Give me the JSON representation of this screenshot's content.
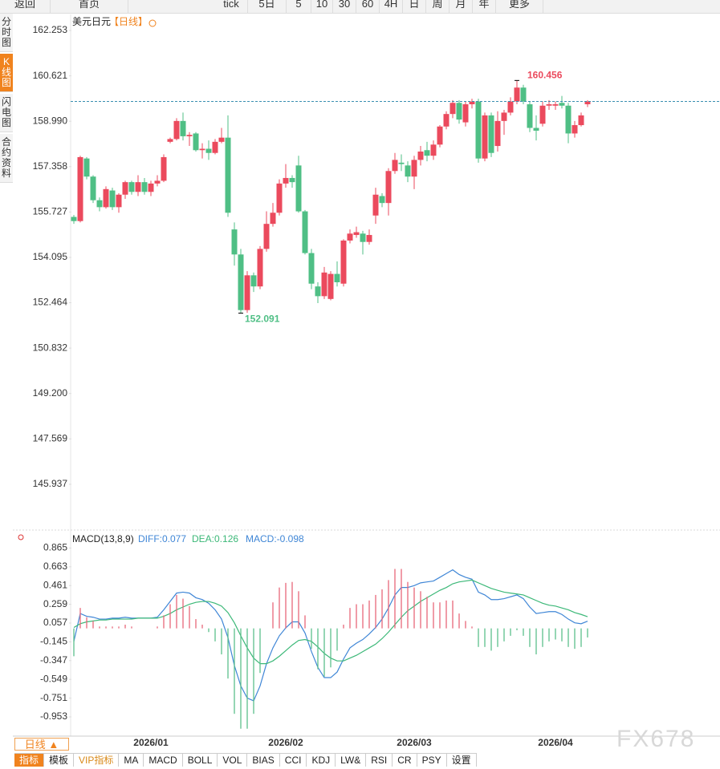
{
  "toolbar": {
    "items": [
      "返回",
      "首页",
      "tick",
      "5日",
      "5",
      "10",
      "30",
      "60",
      "4H",
      "日",
      "周",
      "月",
      "年",
      "更多"
    ]
  },
  "sidebar": [
    "分时图",
    "K线图",
    "闪电图",
    "合约资料"
  ],
  "chart_data": [
    {
      "type": "candlestick",
      "title": "美元日元",
      "subtitle": "【日线】",
      "up_color": "#eb4a5d",
      "down_color": "#4fbf85",
      "ylim": [
        144.32,
        162.83
      ],
      "yticks": [
        162.253,
        160.621,
        {
          "value": 158.99,
          "label": "158.990"
        },
        157.358,
        155.727,
        154.095,
        152.464,
        150.832,
        {
          "value": 149.2,
          "label": "149.200"
        },
        147.569,
        145.937
      ],
      "categories": [
        null,
        null,
        null,
        null,
        null,
        null,
        null,
        null,
        null,
        null,
        null,
        null,
        "2026/01",
        null,
        null,
        null,
        null,
        null,
        null,
        null,
        null,
        null,
        null,
        null,
        null,
        null,
        null,
        null,
        null,
        null,
        null,
        null,
        null,
        "2026/02",
        null,
        null,
        null,
        null,
        null,
        null,
        null,
        null,
        null,
        null,
        null,
        null,
        null,
        null,
        null,
        null,
        null,
        null,
        null,
        "2026/03",
        null,
        null,
        null,
        null,
        null,
        null,
        null,
        null,
        null,
        null,
        null,
        null,
        null,
        null,
        null,
        null,
        null,
        null,
        null,
        null,
        null,
        "2026/04",
        null,
        null,
        null,
        null,
        null
      ],
      "ohlc": [
        [
          155.55,
          155.62,
          155.3,
          155.4
        ],
        [
          155.4,
          157.75,
          155.35,
          157.7
        ],
        [
          157.65,
          157.7,
          156.9,
          157.0
        ],
        [
          157.0,
          157.05,
          156.05,
          156.15
        ],
        [
          156.15,
          156.25,
          155.75,
          155.9
        ],
        [
          155.9,
          156.65,
          155.85,
          156.55
        ],
        [
          156.5,
          156.6,
          155.8,
          155.9
        ],
        [
          155.9,
          156.4,
          155.7,
          156.35
        ],
        [
          156.35,
          156.85,
          156.2,
          156.8
        ],
        [
          156.8,
          156.85,
          156.35,
          156.45
        ],
        [
          156.45,
          157.05,
          156.3,
          156.8
        ],
        [
          156.8,
          156.95,
          156.35,
          156.45
        ],
        [
          156.45,
          156.85,
          156.3,
          156.75
        ],
        [
          156.75,
          157.05,
          156.65,
          156.85
        ],
        [
          156.85,
          157.8,
          156.8,
          157.7
        ],
        [
          158.25,
          158.4,
          158.2,
          158.35
        ],
        [
          158.35,
          159.1,
          158.3,
          159.0
        ],
        [
          159.0,
          159.3,
          158.3,
          158.45
        ],
        [
          158.45,
          158.6,
          158.1,
          158.5
        ],
        [
          158.55,
          158.6,
          157.9,
          157.95
        ],
        [
          157.95,
          158.2,
          157.65,
          158.0
        ],
        [
          158.0,
          158.3,
          157.6,
          157.85
        ],
        [
          157.85,
          158.35,
          157.8,
          158.25
        ],
        [
          158.25,
          158.75,
          158.2,
          158.4
        ],
        [
          158.4,
          159.2,
          155.55,
          155.7
        ],
        [
          155.1,
          155.35,
          153.8,
          154.2
        ],
        [
          154.2,
          154.4,
          152.091,
          152.2
        ],
        [
          152.2,
          153.6,
          152.1,
          153.45
        ],
        [
          153.45,
          153.55,
          152.85,
          153.05
        ],
        [
          153.05,
          154.5,
          152.95,
          154.4
        ],
        [
          154.4,
          155.75,
          154.3,
          155.3
        ],
        [
          155.3,
          156.05,
          155.2,
          155.7
        ],
        [
          155.7,
          156.9,
          155.6,
          156.75
        ],
        [
          156.75,
          157.45,
          156.6,
          156.95
        ],
        [
          156.95,
          157.05,
          156.6,
          156.8
        ],
        [
          157.4,
          157.75,
          155.7,
          155.75
        ],
        [
          155.75,
          155.8,
          154.2,
          154.25
        ],
        [
          154.25,
          154.4,
          152.95,
          153.15
        ],
        [
          153.05,
          153.2,
          152.45,
          152.7
        ],
        [
          152.7,
          153.75,
          152.6,
          153.55
        ],
        [
          152.6,
          153.6,
          152.55,
          153.5
        ],
        [
          153.5,
          153.95,
          153.05,
          153.2
        ],
        [
          153.15,
          154.75,
          153.05,
          154.7
        ],
        [
          154.7,
          155.1,
          154.6,
          154.95
        ],
        [
          154.9,
          155.2,
          154.8,
          155.0
        ],
        [
          154.95,
          155.05,
          154.2,
          154.65
        ],
        [
          154.65,
          155.1,
          154.55,
          154.9
        ],
        [
          155.6,
          156.6,
          155.3,
          156.35
        ],
        [
          156.3,
          156.4,
          155.9,
          156.05
        ],
        [
          156.05,
          157.3,
          155.6,
          157.2
        ],
        [
          157.2,
          157.85,
          157.1,
          157.6
        ],
        [
          157.5,
          157.8,
          157.2,
          157.45
        ],
        [
          157.4,
          157.55,
          156.8,
          157.0
        ],
        [
          157.0,
          157.75,
          156.55,
          157.6
        ],
        [
          157.6,
          158.1,
          157.4,
          157.9
        ],
        [
          157.95,
          158.25,
          157.55,
          157.75
        ],
        [
          157.75,
          158.3,
          157.6,
          158.15
        ],
        [
          158.15,
          158.85,
          158.05,
          158.8
        ],
        [
          158.8,
          159.35,
          158.7,
          159.25
        ],
        [
          159.25,
          159.75,
          159.1,
          159.65
        ],
        [
          159.65,
          159.75,
          158.9,
          159.05
        ],
        [
          158.95,
          159.7,
          158.8,
          159.6
        ],
        [
          159.6,
          159.8,
          159.45,
          159.7
        ],
        [
          159.7,
          159.8,
          157.5,
          157.65
        ],
        [
          157.65,
          159.3,
          157.55,
          159.2
        ],
        [
          159.2,
          159.3,
          157.7,
          157.85
        ],
        [
          158.1,
          159.35,
          157.9,
          159.0
        ],
        [
          159.0,
          159.4,
          158.5,
          159.3
        ],
        [
          159.3,
          159.85,
          159.2,
          159.7
        ],
        [
          159.7,
          160.456,
          159.6,
          160.2
        ],
        [
          160.2,
          160.3,
          159.6,
          159.7
        ],
        [
          159.6,
          159.7,
          158.6,
          158.75
        ],
        [
          158.75,
          159.2,
          158.3,
          158.65
        ],
        [
          158.9,
          159.7,
          158.8,
          159.55
        ],
        [
          159.55,
          159.75,
          159.4,
          159.6
        ],
        [
          159.55,
          159.7,
          159.4,
          159.6
        ],
        [
          159.65,
          159.9,
          159.45,
          159.55
        ],
        [
          159.55,
          159.65,
          158.2,
          158.55
        ],
        [
          158.55,
          159.0,
          158.4,
          158.85
        ],
        [
          158.85,
          159.3,
          158.8,
          159.2
        ],
        [
          159.6,
          159.75,
          159.5,
          159.7
        ]
      ]
    },
    {
      "type": "macd",
      "title": "MACD(13,8,9)",
      "ylim": [
        -1.16,
        1.05
      ],
      "yticks": [
        0.865,
        0.663,
        0.461,
        0.259,
        0.057,
        -0.145,
        -0.347,
        -0.549,
        -0.751,
        -0.953
      ],
      "series": [
        {
          "name": "DIFF:0.077",
          "color": "#3f86d6",
          "values": [
            -0.14,
            0.16,
            0.13,
            0.12,
            0.1,
            0.1,
            0.11,
            0.11,
            0.12,
            0.11,
            0.11,
            0.11,
            0.11,
            0.12,
            0.2,
            0.29,
            0.38,
            0.39,
            0.38,
            0.33,
            0.31,
            0.27,
            0.2,
            0.1,
            -0.1,
            -0.4,
            -0.62,
            -0.75,
            -0.78,
            -0.62,
            -0.38,
            -0.21,
            -0.08,
            0.005,
            0.07,
            0.07,
            -0.05,
            -0.25,
            -0.42,
            -0.53,
            -0.53,
            -0.47,
            -0.33,
            -0.21,
            -0.16,
            -0.12,
            -0.06,
            0.01,
            0.1,
            0.22,
            0.36,
            0.44,
            0.44,
            0.46,
            0.49,
            0.5,
            0.51,
            0.55,
            0.59,
            0.63,
            0.58,
            0.55,
            0.53,
            0.39,
            0.36,
            0.31,
            0.31,
            0.32,
            0.34,
            0.36,
            0.32,
            0.23,
            0.16,
            0.17,
            0.18,
            0.18,
            0.15,
            0.1,
            0.06,
            0.05,
            0.077
          ]
        },
        {
          "name": "DEA:0.126",
          "color": "#3cb878",
          "values": [
            0.01,
            0.05,
            0.07,
            0.08,
            0.09,
            0.09,
            0.1,
            0.1,
            0.1,
            0.1,
            0.11,
            0.11,
            0.11,
            0.11,
            0.13,
            0.16,
            0.2,
            0.23,
            0.26,
            0.28,
            0.29,
            0.29,
            0.27,
            0.24,
            0.17,
            0.06,
            -0.08,
            -0.21,
            -0.32,
            -0.38,
            -0.38,
            -0.35,
            -0.3,
            -0.24,
            -0.18,
            -0.13,
            -0.12,
            -0.14,
            -0.2,
            -0.27,
            -0.32,
            -0.35,
            -0.35,
            -0.32,
            -0.29,
            -0.25,
            -0.21,
            -0.17,
            -0.11,
            -0.04,
            0.04,
            0.12,
            0.19,
            0.24,
            0.29,
            0.33,
            0.37,
            0.41,
            0.44,
            0.48,
            0.5,
            0.51,
            0.52,
            0.49,
            0.46,
            0.43,
            0.41,
            0.39,
            0.38,
            0.37,
            0.36,
            0.33,
            0.3,
            0.27,
            0.25,
            0.24,
            0.22,
            0.2,
            0.17,
            0.15,
            0.126
          ]
        },
        {
          "name": "MACD:-0.098",
          "color": "#3f86d6",
          "up_color": "#e8677a",
          "down_color": "#5cbf8c",
          "values": [
            -0.3,
            0.22,
            0.12,
            0.08,
            0.02,
            0.02,
            0.02,
            0.02,
            0.04,
            0.02,
            0.0,
            0.0,
            0.0,
            0.02,
            0.14,
            0.26,
            0.36,
            0.32,
            0.24,
            0.1,
            0.04,
            -0.04,
            -0.14,
            -0.28,
            -0.54,
            -0.92,
            -1.08,
            -1.08,
            -0.92,
            -0.48,
            0.0,
            0.28,
            0.44,
            0.49,
            0.5,
            0.4,
            0.14,
            -0.22,
            -0.44,
            -0.52,
            -0.42,
            -0.24,
            0.04,
            0.22,
            0.26,
            0.26,
            0.3,
            0.36,
            0.42,
            0.52,
            0.64,
            0.64,
            0.5,
            0.44,
            0.4,
            0.34,
            0.28,
            0.28,
            0.3,
            0.3,
            0.16,
            0.08,
            0.02,
            -0.2,
            -0.2,
            -0.24,
            -0.2,
            -0.14,
            -0.08,
            -0.02,
            -0.08,
            -0.2,
            -0.28,
            -0.2,
            -0.14,
            -0.12,
            -0.14,
            -0.2,
            -0.22,
            -0.2,
            -0.098
          ]
        }
      ]
    }
  ],
  "bottom_bar": {
    "period": "日线 ▲",
    "tabs": [
      "指标",
      "模板",
      "VIP指标",
      "MA",
      "MACD",
      "BOLL",
      "VOL",
      "BIAS",
      "CCI",
      "KDJ",
      "LW&",
      "RSI",
      "CR",
      "PSY",
      "设置"
    ]
  },
  "watermark": "FX678"
}
